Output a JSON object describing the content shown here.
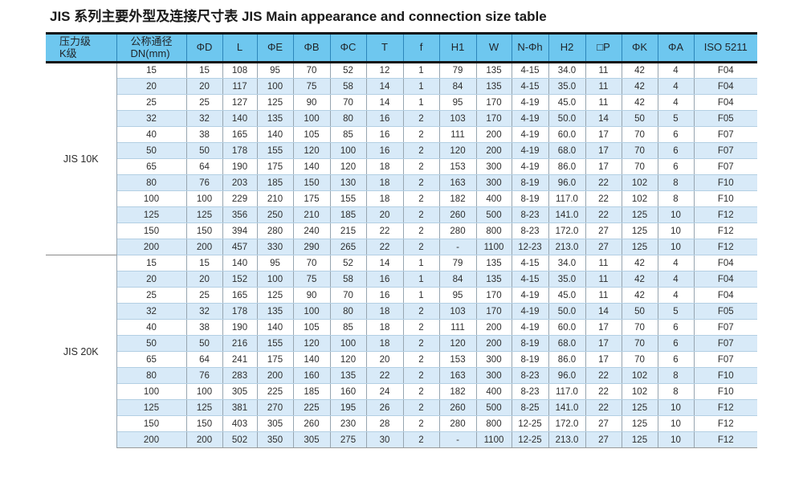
{
  "title": "JIS 系列主要外型及连接尺寸表  JIS Main appearance and connection size table",
  "colors": {
    "header_bg": "#6ec7ef",
    "header_divider": "#2c86ba",
    "stripe": "#d8eaf8",
    "header_border": "#141414",
    "row_line": "#b3cfe3",
    "column_line": "#97a5b0",
    "group_separator": "#8a8a8a",
    "text": "#2e2e2e"
  },
  "table": {
    "columns": [
      "压力级\nK级",
      "公称通径\nDN(mm)",
      "ΦD",
      "L",
      "ΦE",
      "ΦB",
      "ΦC",
      "T",
      "f",
      "H1",
      "W",
      "N-Φh",
      "H2",
      "□P",
      "ΦK",
      "ΦA",
      "ISO 5211"
    ],
    "groups": [
      {
        "label": "JIS 10K",
        "rows": [
          [
            "15",
            "15",
            "108",
            "95",
            "70",
            "52",
            "12",
            "1",
            "79",
            "135",
            "4-15",
            "34.0",
            "11",
            "42",
            "4",
            "F04"
          ],
          [
            "20",
            "20",
            "117",
            "100",
            "75",
            "58",
            "14",
            "1",
            "84",
            "135",
            "4-15",
            "35.0",
            "11",
            "42",
            "4",
            "F04"
          ],
          [
            "25",
            "25",
            "127",
            "125",
            "90",
            "70",
            "14",
            "1",
            "95",
            "170",
            "4-19",
            "45.0",
            "11",
            "42",
            "4",
            "F04"
          ],
          [
            "32",
            "32",
            "140",
            "135",
            "100",
            "80",
            "16",
            "2",
            "103",
            "170",
            "4-19",
            "50.0",
            "14",
            "50",
            "5",
            "F05"
          ],
          [
            "40",
            "38",
            "165",
            "140",
            "105",
            "85",
            "16",
            "2",
            "111",
            "200",
            "4-19",
            "60.0",
            "17",
            "70",
            "6",
            "F07"
          ],
          [
            "50",
            "50",
            "178",
            "155",
            "120",
            "100",
            "16",
            "2",
            "120",
            "200",
            "4-19",
            "68.0",
            "17",
            "70",
            "6",
            "F07"
          ],
          [
            "65",
            "64",
            "190",
            "175",
            "140",
            "120",
            "18",
            "2",
            "153",
            "300",
            "4-19",
            "86.0",
            "17",
            "70",
            "6",
            "F07"
          ],
          [
            "80",
            "76",
            "203",
            "185",
            "150",
            "130",
            "18",
            "2",
            "163",
            "300",
            "8-19",
            "96.0",
            "22",
            "102",
            "8",
            "F10"
          ],
          [
            "100",
            "100",
            "229",
            "210",
            "175",
            "155",
            "18",
            "2",
            "182",
            "400",
            "8-19",
            "117.0",
            "22",
            "102",
            "8",
            "F10"
          ],
          [
            "125",
            "125",
            "356",
            "250",
            "210",
            "185",
            "20",
            "2",
            "260",
            "500",
            "8-23",
            "141.0",
            "22",
            "125",
            "10",
            "F12"
          ],
          [
            "150",
            "150",
            "394",
            "280",
            "240",
            "215",
            "22",
            "2",
            "280",
            "800",
            "8-23",
            "172.0",
            "27",
            "125",
            "10",
            "F12"
          ],
          [
            "200",
            "200",
            "457",
            "330",
            "290",
            "265",
            "22",
            "2",
            "-",
            "1100",
            "12-23",
            "213.0",
            "27",
            "125",
            "10",
            "F12"
          ]
        ]
      },
      {
        "label": "JIS 20K",
        "rows": [
          [
            "15",
            "15",
            "140",
            "95",
            "70",
            "52",
            "14",
            "1",
            "79",
            "135",
            "4-15",
            "34.0",
            "11",
            "42",
            "4",
            "F04"
          ],
          [
            "20",
            "20",
            "152",
            "100",
            "75",
            "58",
            "16",
            "1",
            "84",
            "135",
            "4-15",
            "35.0",
            "11",
            "42",
            "4",
            "F04"
          ],
          [
            "25",
            "25",
            "165",
            "125",
            "90",
            "70",
            "16",
            "1",
            "95",
            "170",
            "4-19",
            "45.0",
            "11",
            "42",
            "4",
            "F04"
          ],
          [
            "32",
            "32",
            "178",
            "135",
            "100",
            "80",
            "18",
            "2",
            "103",
            "170",
            "4-19",
            "50.0",
            "14",
            "50",
            "5",
            "F05"
          ],
          [
            "40",
            "38",
            "190",
            "140",
            "105",
            "85",
            "18",
            "2",
            "111",
            "200",
            "4-19",
            "60.0",
            "17",
            "70",
            "6",
            "F07"
          ],
          [
            "50",
            "50",
            "216",
            "155",
            "120",
            "100",
            "18",
            "2",
            "120",
            "200",
            "8-19",
            "68.0",
            "17",
            "70",
            "6",
            "F07"
          ],
          [
            "65",
            "64",
            "241",
            "175",
            "140",
            "120",
            "20",
            "2",
            "153",
            "300",
            "8-19",
            "86.0",
            "17",
            "70",
            "6",
            "F07"
          ],
          [
            "80",
            "76",
            "283",
            "200",
            "160",
            "135",
            "22",
            "2",
            "163",
            "300",
            "8-23",
            "96.0",
            "22",
            "102",
            "8",
            "F10"
          ],
          [
            "100",
            "100",
            "305",
            "225",
            "185",
            "160",
            "24",
            "2",
            "182",
            "400",
            "8-23",
            "117.0",
            "22",
            "102",
            "8",
            "F10"
          ],
          [
            "125",
            "125",
            "381",
            "270",
            "225",
            "195",
            "26",
            "2",
            "260",
            "500",
            "8-25",
            "141.0",
            "22",
            "125",
            "10",
            "F12"
          ],
          [
            "150",
            "150",
            "403",
            "305",
            "260",
            "230",
            "28",
            "2",
            "280",
            "800",
            "12-25",
            "172.0",
            "27",
            "125",
            "10",
            "F12"
          ],
          [
            "200",
            "200",
            "502",
            "350",
            "305",
            "275",
            "30",
            "2",
            "-",
            "1100",
            "12-25",
            "213.0",
            "27",
            "125",
            "10",
            "F12"
          ]
        ]
      }
    ]
  }
}
